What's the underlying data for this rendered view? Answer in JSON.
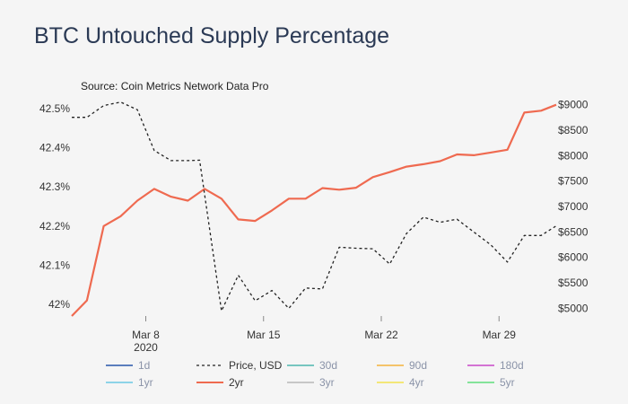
{
  "title": "BTC Untouched Supply Percentage",
  "chart_data": {
    "type": "line",
    "title": "BTC Untouched Supply Percentage",
    "source": "Source: Coin Metrics Network Data Pro",
    "x_labels": [
      "Mar 8",
      "2020",
      "Mar 15",
      "Mar 22",
      "Mar 29"
    ],
    "x_tick_days": [
      8,
      15,
      22,
      29
    ],
    "x_range": [
      3.6,
      32.4
    ],
    "y_left": {
      "range": [
        41.97,
        42.53
      ],
      "ticks": [
        42.0,
        42.1,
        42.2,
        42.3,
        42.4,
        42.5
      ],
      "tick_labels": [
        "42%",
        "42.1%",
        "42.2%",
        "42.3%",
        "42.4%",
        "42.5%"
      ]
    },
    "y_right": {
      "range": [
        4850,
        9150
      ],
      "ticks": [
        5000,
        5500,
        6000,
        6500,
        7000,
        7500,
        8000,
        8500,
        9000
      ],
      "tick_labels": [
        "$5000",
        "$5500",
        "$6000",
        "$6500",
        "$7000",
        "$7500",
        "$8000",
        "$8500",
        "$9000"
      ]
    },
    "series": [
      {
        "name": "2yr",
        "axis": "left",
        "color": "#ef6a50",
        "dash": "solid",
        "x": [
          3.6,
          4.5,
          5.5,
          6.5,
          7.5,
          8.5,
          9.5,
          10.5,
          11.5,
          12.5,
          13.5,
          14.5,
          15.5,
          16.5,
          17.5,
          18.5,
          19.5,
          20.5,
          21.5,
          22.5,
          23.5,
          24.5,
          25.5,
          26.5,
          27.5,
          28.5,
          29.5,
          30.5,
          31.5,
          32.4
        ],
        "values": [
          41.97,
          42.01,
          42.2,
          42.225,
          42.265,
          42.295,
          42.275,
          42.265,
          42.295,
          42.27,
          42.217,
          42.213,
          42.24,
          42.27,
          42.27,
          42.297,
          42.293,
          42.298,
          42.325,
          42.338,
          42.352,
          42.358,
          42.366,
          42.383,
          42.381,
          42.388,
          42.395,
          42.49,
          42.495,
          42.51
        ]
      },
      {
        "name": "Price, USD",
        "axis": "right",
        "color": "#222222",
        "dash": "dashed",
        "x": [
          3.6,
          4.5,
          5.5,
          6.5,
          7.5,
          8.5,
          9.5,
          10.5,
          11.2,
          12.5,
          13.5,
          14.5,
          15.5,
          16.5,
          17.5,
          18.5,
          19.5,
          20.5,
          21.5,
          22.5,
          23.5,
          24.5,
          25.5,
          26.5,
          27.5,
          28.5,
          29.5,
          30.5,
          31.5,
          32.4
        ],
        "values": [
          8750,
          8750,
          8980,
          9050,
          8900,
          8100,
          7900,
          7900,
          7910,
          4950,
          5650,
          5150,
          5350,
          5000,
          5400,
          5380,
          6200,
          6180,
          6170,
          5870,
          6470,
          6790,
          6690,
          6750,
          6500,
          6250,
          5910,
          6430,
          6430,
          6620
        ]
      }
    ],
    "legend": [
      {
        "name": "1d",
        "color": "#5b7ebd",
        "dash": "solid"
      },
      {
        "name": "Price, USD",
        "color": "#222222",
        "dash": "dashed"
      },
      {
        "name": "30d",
        "color": "#77c6c0",
        "dash": "solid"
      },
      {
        "name": "90d",
        "color": "#f4c36a",
        "dash": "solid"
      },
      {
        "name": "180d",
        "color": "#d373d3",
        "dash": "solid"
      },
      {
        "name": "1yr",
        "color": "#8dd3e8",
        "dash": "solid"
      },
      {
        "name": "2yr",
        "color": "#ef6a50",
        "dash": "solid"
      },
      {
        "name": "3yr",
        "color": "#c7c7c7",
        "dash": "solid"
      },
      {
        "name": "4yr",
        "color": "#f3e777",
        "dash": "solid"
      },
      {
        "name": "5yr",
        "color": "#84e39a",
        "dash": "solid"
      }
    ]
  }
}
